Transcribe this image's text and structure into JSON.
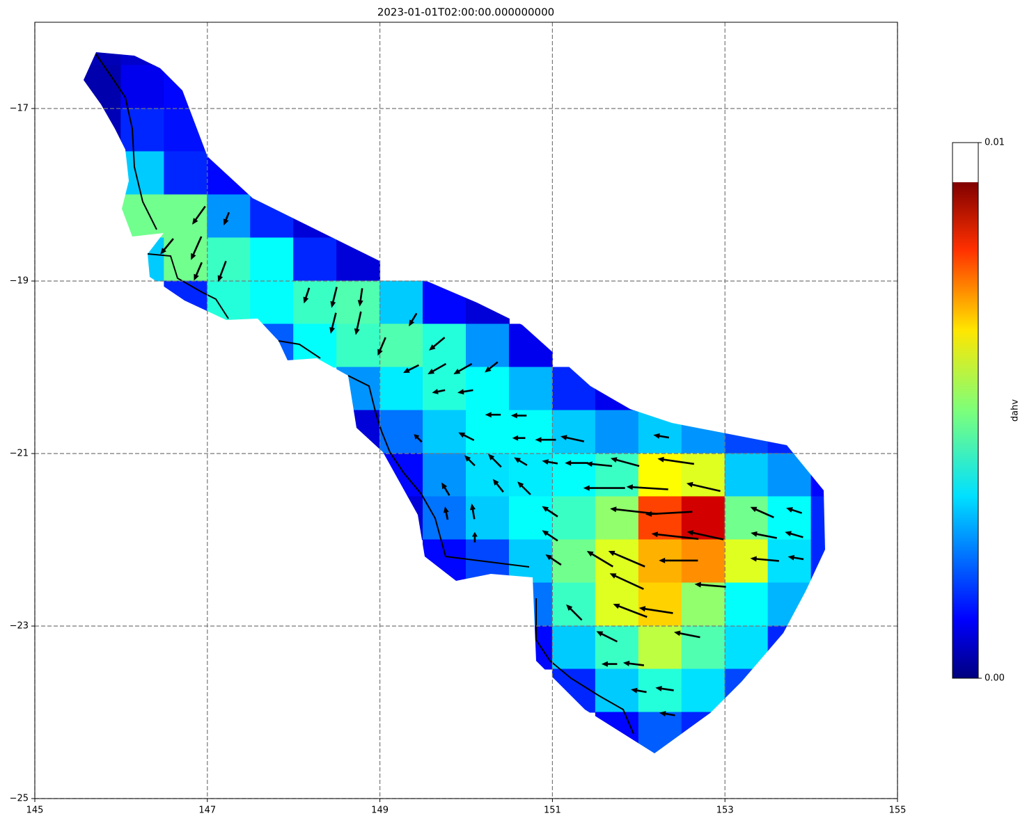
{
  "chart_data": {
    "type": "heatmap",
    "title": "2023-01-01T02:00:00.000000000",
    "xlim": [
      145,
      155
    ],
    "xticks": [
      145,
      147,
      149,
      151,
      153,
      155
    ],
    "ylim": [
      -25,
      -16
    ],
    "yticks": [
      {
        "value": -25,
        "label": "−25"
      },
      {
        "value": -23,
        "label": "−23"
      },
      {
        "value": -21,
        "label": "−21"
      },
      {
        "value": -19,
        "label": "−19"
      },
      {
        "value": -17,
        "label": "−17"
      }
    ],
    "grid": true,
    "colormap": "jet",
    "colorbar": {
      "label": "dahv",
      "ticks": [
        {
          "value": 0,
          "label": "0.00"
        },
        {
          "value": 0.01,
          "label": "0.01"
        }
      ]
    },
    "field": {
      "rows": [
        {
          "y": -16.25,
          "x": [
            145.75,
            146.25
          ],
          "values": [
            0.0005,
            0.0007
          ]
        },
        {
          "y": -16.75,
          "x": [
            145.75,
            146.25,
            146.75
          ],
          "values": [
            0.0004,
            0.001,
            0.0012
          ]
        },
        {
          "y": -17.25,
          "x": [
            145.75,
            146.25,
            146.75
          ],
          "values": [
            0.0005,
            0.0015,
            0.0013
          ]
        },
        {
          "y": -17.75,
          "x": [
            146.25,
            146.75,
            147.25
          ],
          "values": [
            0.003,
            0.0015,
            0.0012
          ]
        },
        {
          "y": -18.25,
          "x": [
            146.25,
            146.75,
            147.25,
            147.75,
            148.25
          ],
          "values": [
            0.0045,
            0.0045,
            0.0025,
            0.0015,
            0.0008
          ]
        },
        {
          "y": -18.75,
          "x": [
            146.25,
            146.75,
            147.25,
            147.75,
            148.25,
            148.75
          ],
          "values": [
            0.003,
            0.0045,
            0.004,
            0.0035,
            0.0015,
            0.0008
          ]
        },
        {
          "y": -19.25,
          "x": [
            146.75,
            147.25,
            147.75,
            148.25,
            148.75,
            149.25,
            149.75,
            150.25
          ],
          "values": [
            0.0015,
            0.0038,
            0.0035,
            0.004,
            0.0042,
            0.003,
            0.0012,
            0.0008
          ]
        },
        {
          "y": -19.75,
          "x": [
            147.75,
            148.25,
            148.75,
            149.25,
            149.75,
            150.25,
            150.75
          ],
          "values": [
            0.002,
            0.0035,
            0.004,
            0.0042,
            0.0038,
            0.0025,
            0.001
          ]
        },
        {
          "y": -20.25,
          "x": [
            148.75,
            149.25,
            149.75,
            150.25,
            150.75,
            151.25,
            151.75
          ],
          "values": [
            0.0025,
            0.0033,
            0.0038,
            0.0035,
            0.0028,
            0.0015,
            0.001
          ]
        },
        {
          "y": -20.75,
          "x": [
            148.75,
            149.25,
            149.75,
            150.25,
            150.75,
            151.25,
            151.75,
            152.25,
            152.75,
            153.25,
            153.75
          ],
          "values": [
            0.0008,
            0.0022,
            0.003,
            0.0035,
            0.0035,
            0.003,
            0.0025,
            0.003,
            0.0025,
            0.0018,
            0.0015
          ]
        },
        {
          "y": -21.25,
          "x": [
            149.25,
            149.75,
            150.25,
            150.75,
            151.25,
            151.75,
            152.25,
            152.75,
            153.25,
            153.75,
            154.25
          ],
          "values": [
            0.0012,
            0.0025,
            0.0032,
            0.0033,
            0.0035,
            0.004,
            0.0058,
            0.0055,
            0.003,
            0.0025,
            0.0012
          ]
        },
        {
          "y": -21.75,
          "x": [
            149.25,
            149.75,
            150.25,
            150.75,
            151.25,
            151.75,
            152.25,
            152.75,
            153.25,
            153.75,
            154.25
          ],
          "values": [
            0.0008,
            0.0022,
            0.003,
            0.0035,
            0.004,
            0.0048,
            0.0075,
            0.0085,
            0.0045,
            0.0035,
            0.0015
          ]
        },
        {
          "y": -22.25,
          "x": [
            149.75,
            150.25,
            150.75,
            151.25,
            151.75,
            152.25,
            152.75,
            153.25,
            153.75,
            154.25
          ],
          "values": [
            0.0012,
            0.0018,
            0.003,
            0.0045,
            0.0055,
            0.0065,
            0.0068,
            0.0055,
            0.0032,
            0.0015
          ]
        },
        {
          "y": -22.75,
          "x": [
            150.75,
            151.25,
            151.75,
            152.25,
            152.75,
            153.25,
            153.75
          ],
          "values": [
            0.0022,
            0.004,
            0.0055,
            0.0062,
            0.0048,
            0.0035,
            0.0028
          ]
        },
        {
          "y": -23.25,
          "x": [
            150.75,
            151.25,
            151.75,
            152.25,
            152.75,
            153.25,
            153.75
          ],
          "values": [
            0.0012,
            0.003,
            0.004,
            0.0052,
            0.0042,
            0.0032,
            0.0015
          ]
        },
        {
          "y": -23.75,
          "x": [
            151.25,
            151.75,
            152.25,
            152.75,
            153.25
          ],
          "values": [
            0.0015,
            0.003,
            0.0038,
            0.0032,
            0.0018
          ]
        },
        {
          "y": -24.25,
          "x": [
            151.75,
            152.25,
            152.75
          ],
          "values": [
            0.0012,
            0.002,
            0.0015
          ]
        }
      ]
    },
    "arrows": [
      {
        "x": 146.9,
        "y": -18.24,
        "u": -0.25,
        "v": -0.35
      },
      {
        "x": 147.22,
        "y": -18.28,
        "u": -0.1,
        "v": -0.25
      },
      {
        "x": 146.53,
        "y": -18.6,
        "u": -0.25,
        "v": -0.3
      },
      {
        "x": 146.87,
        "y": -18.62,
        "u": -0.2,
        "v": -0.45
      },
      {
        "x": 147.17,
        "y": -18.89,
        "u": -0.15,
        "v": -0.4
      },
      {
        "x": 146.89,
        "y": -18.89,
        "u": -0.15,
        "v": -0.35
      },
      {
        "x": 148.15,
        "y": -19.17,
        "u": -0.1,
        "v": -0.3
      },
      {
        "x": 148.47,
        "y": -19.19,
        "u": -0.1,
        "v": -0.4
      },
      {
        "x": 148.78,
        "y": -19.19,
        "u": -0.05,
        "v": -0.35
      },
      {
        "x": 148.75,
        "y": -19.49,
        "u": -0.1,
        "v": -0.45
      },
      {
        "x": 148.46,
        "y": -19.49,
        "u": -0.1,
        "v": -0.4
      },
      {
        "x": 149.02,
        "y": -19.76,
        "u": -0.15,
        "v": -0.35
      },
      {
        "x": 149.66,
        "y": -19.73,
        "u": -0.3,
        "v": -0.25
      },
      {
        "x": 149.38,
        "y": -19.45,
        "u": -0.15,
        "v": -0.25
      },
      {
        "x": 149.66,
        "y": -20.02,
        "u": -0.35,
        "v": -0.2
      },
      {
        "x": 149.96,
        "y": -20.02,
        "u": -0.35,
        "v": -0.2
      },
      {
        "x": 150.29,
        "y": -20.0,
        "u": -0.25,
        "v": -0.2
      },
      {
        "x": 149.36,
        "y": -20.02,
        "u": -0.3,
        "v": -0.15
      },
      {
        "x": 149.68,
        "y": -20.28,
        "u": -0.25,
        "v": -0.05
      },
      {
        "x": 149.99,
        "y": -20.28,
        "u": -0.3,
        "v": -0.05
      },
      {
        "x": 150.31,
        "y": -20.55,
        "u": -0.3,
        "v": 0.0
      },
      {
        "x": 150.61,
        "y": -20.56,
        "u": -0.3,
        "v": 0.0
      },
      {
        "x": 150.0,
        "y": -20.8,
        "u": -0.3,
        "v": 0.15
      },
      {
        "x": 150.61,
        "y": -20.82,
        "u": -0.25,
        "v": 0.0
      },
      {
        "x": 150.92,
        "y": -20.84,
        "u": -0.4,
        "v": 0.0
      },
      {
        "x": 151.23,
        "y": -20.83,
        "u": -0.45,
        "v": 0.1
      },
      {
        "x": 150.33,
        "y": -21.08,
        "u": -0.25,
        "v": 0.25
      },
      {
        "x": 150.63,
        "y": -21.09,
        "u": -0.25,
        "v": 0.15
      },
      {
        "x": 150.97,
        "y": -21.1,
        "u": -0.3,
        "v": 0.05
      },
      {
        "x": 151.28,
        "y": -21.11,
        "u": -0.45,
        "v": 0.0
      },
      {
        "x": 151.54,
        "y": -21.13,
        "u": -0.5,
        "v": 0.05
      },
      {
        "x": 151.84,
        "y": -21.1,
        "u": -0.55,
        "v": 0.15
      },
      {
        "x": 152.43,
        "y": -21.09,
        "u": -0.7,
        "v": 0.1
      },
      {
        "x": 151.6,
        "y": -21.4,
        "u": -0.8,
        "v": 0.0
      },
      {
        "x": 152.1,
        "y": -21.4,
        "u": -0.8,
        "v": 0.05
      },
      {
        "x": 152.75,
        "y": -21.39,
        "u": -0.65,
        "v": 0.15
      },
      {
        "x": 151.94,
        "y": -21.67,
        "u": -0.9,
        "v": 0.1
      },
      {
        "x": 152.35,
        "y": -21.69,
        "u": -0.9,
        "v": -0.05
      },
      {
        "x": 152.77,
        "y": -21.95,
        "u": -0.7,
        "v": 0.15
      },
      {
        "x": 152.42,
        "y": -21.96,
        "u": -0.9,
        "v": 0.1
      },
      {
        "x": 152.46,
        "y": -22.24,
        "u": -0.75,
        "v": 0.0
      },
      {
        "x": 152.83,
        "y": -22.53,
        "u": -0.6,
        "v": 0.05
      },
      {
        "x": 151.86,
        "y": -22.48,
        "u": -0.65,
        "v": 0.3
      },
      {
        "x": 151.86,
        "y": -22.22,
        "u": -0.7,
        "v": 0.3
      },
      {
        "x": 151.55,
        "y": -22.22,
        "u": -0.5,
        "v": 0.3
      },
      {
        "x": 151.9,
        "y": -22.82,
        "u": -0.65,
        "v": 0.25
      },
      {
        "x": 152.2,
        "y": -22.82,
        "u": -0.65,
        "v": 0.1
      },
      {
        "x": 152.56,
        "y": -23.1,
        "u": -0.5,
        "v": 0.1
      },
      {
        "x": 151.63,
        "y": -23.12,
        "u": -0.4,
        "v": 0.2
      },
      {
        "x": 151.94,
        "y": -23.44,
        "u": -0.4,
        "v": 0.05
      },
      {
        "x": 151.66,
        "y": -23.44,
        "u": -0.3,
        "v": 0.0
      },
      {
        "x": 152.0,
        "y": -23.75,
        "u": -0.3,
        "v": 0.05
      },
      {
        "x": 152.3,
        "y": -23.73,
        "u": -0.35,
        "v": 0.05
      },
      {
        "x": 152.33,
        "y": -24.02,
        "u": -0.3,
        "v": 0.05
      },
      {
        "x": 153.43,
        "y": -21.68,
        "u": -0.45,
        "v": 0.2
      },
      {
        "x": 153.45,
        "y": -21.95,
        "u": -0.5,
        "v": 0.1
      },
      {
        "x": 153.46,
        "y": -22.23,
        "u": -0.55,
        "v": 0.05
      },
      {
        "x": 153.8,
        "y": -21.94,
        "u": -0.35,
        "v": 0.1
      },
      {
        "x": 153.8,
        "y": -21.66,
        "u": -0.3,
        "v": 0.1
      },
      {
        "x": 153.82,
        "y": -22.21,
        "u": -0.3,
        "v": 0.05
      },
      {
        "x": 150.97,
        "y": -21.95,
        "u": -0.3,
        "v": 0.2
      },
      {
        "x": 151.01,
        "y": -22.23,
        "u": -0.3,
        "v": 0.2
      },
      {
        "x": 150.97,
        "y": -21.67,
        "u": -0.3,
        "v": 0.2
      },
      {
        "x": 150.67,
        "y": -21.4,
        "u": -0.25,
        "v": 0.25
      },
      {
        "x": 150.37,
        "y": -21.37,
        "u": -0.2,
        "v": 0.25
      },
      {
        "x": 150.04,
        "y": -21.08,
        "u": -0.2,
        "v": 0.2
      },
      {
        "x": 149.76,
        "y": -21.41,
        "u": -0.15,
        "v": 0.25
      },
      {
        "x": 150.08,
        "y": -21.67,
        "u": -0.05,
        "v": 0.3
      },
      {
        "x": 149.77,
        "y": -21.69,
        "u": -0.05,
        "v": 0.25
      },
      {
        "x": 150.1,
        "y": -21.97,
        "u": 0.0,
        "v": 0.2
      },
      {
        "x": 149.44,
        "y": -20.82,
        "u": -0.15,
        "v": 0.15
      },
      {
        "x": 152.26,
        "y": -20.8,
        "u": -0.3,
        "v": 0.05
      },
      {
        "x": 151.25,
        "y": -22.84,
        "u": -0.3,
        "v": 0.3
      }
    ]
  }
}
